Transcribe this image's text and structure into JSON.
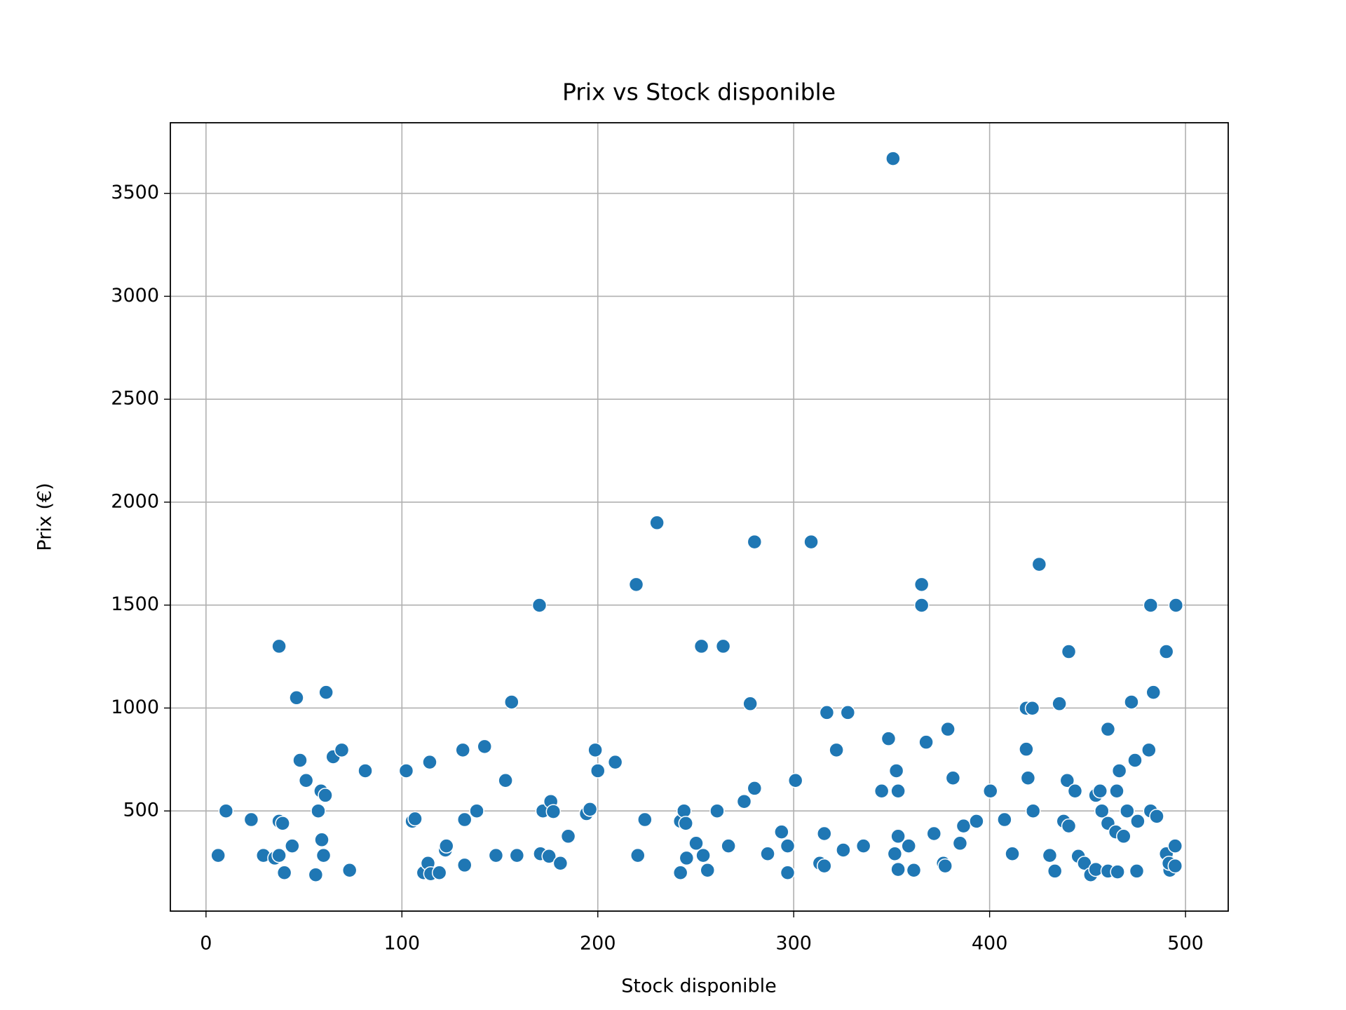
{
  "chart_data": {
    "type": "scatter",
    "title": "Prix vs Stock disponible",
    "x_label": "Stock disponible",
    "y_label": "Prix (€)",
    "color": "#1f77b4",
    "grid": true,
    "xlim": [
      -18.2,
      521.8
    ],
    "ylim": [
      13.5,
      3843
    ],
    "xticks": [
      0,
      100,
      200,
      300,
      400,
      500
    ],
    "yticks": [
      500,
      1000,
      1500,
      2000,
      2500,
      3000,
      3500
    ],
    "x": [
      6.2,
      10.2,
      23.1,
      29.3,
      35.1,
      37.3,
      37.3,
      37.3,
      39.1,
      40,
      44,
      46.2,
      48,
      51.1,
      56,
      57.3,
      58.7,
      59.1,
      60,
      60.9,
      61.3,
      64.9,
      69.3,
      73.3,
      81.3,
      102.2,
      105.3,
      106.7,
      111.1,
      113.3,
      114.7,
      114.2,
      119.1,
      122.2,
      122.7,
      131.1,
      132,
      132,
      138.2,
      142.2,
      148,
      152.9,
      156,
      158.7,
      170.2,
      170.7,
      172,
      175.1,
      176,
      177.3,
      180.9,
      184.9,
      194.2,
      196,
      198.7,
      200,
      208.9,
      219.6,
      220.4,
      224,
      230.2,
      242.2,
      242.2,
      244,
      244.9,
      245.3,
      250.2,
      252.9,
      253.8,
      256,
      260.9,
      264,
      266.7,
      274.7,
      277.8,
      280,
      280,
      286.7,
      293.8,
      296.9,
      296.9,
      300.9,
      308.9,
      313.3,
      315.6,
      315.6,
      316.9,
      321.8,
      325.3,
      327.6,
      335.6,
      344.9,
      348.4,
      350.7,
      351.6,
      352.4,
      353.3,
      353.3,
      353.3,
      358.7,
      361.3,
      365.3,
      365.3,
      367.6,
      371.6,
      376.4,
      377.3,
      378.7,
      381.3,
      384.9,
      386.7,
      393.3,
      400.4,
      407.6,
      411.6,
      418.7,
      418.7,
      419.6,
      421.8,
      422.2,
      425.3,
      430.7,
      433.3,
      435.6,
      437.8,
      439.6,
      440.4,
      440.4,
      443.6,
      445.3,
      448.4,
      451.6,
      454.2,
      454.2,
      456.4,
      457.3,
      460.4,
      460.4,
      460.4,
      464.4,
      464.9,
      466.2,
      465.3,
      468.4,
      470.2,
      472.4,
      474.2,
      475.1,
      475.6,
      481.3,
      482.2,
      482.2,
      483.6,
      485.3,
      490.2,
      490.2,
      492,
      491.6,
      494.7,
      494.7,
      495.1
    ],
    "values": [
      284,
      500,
      458,
      284,
      271,
      1300,
      450,
      284,
      440,
      200,
      330,
      1050,
      746,
      648,
      190,
      500,
      597,
      360,
      284,
      576,
      1076,
      763,
      796,
      212,
      695,
      695,
      450,
      462,
      200,
      246,
      195,
      737,
      200,
      310,
      330,
      796,
      458,
      237,
      500,
      813,
      284,
      648,
      1029,
      284,
      1499,
      292,
      500,
      280,
      546,
      497,
      246,
      377,
      487,
      508,
      796,
      695,
      737,
      1600,
      284,
      458,
      1900,
      450,
      200,
      500,
      440,
      271,
      343,
      1300,
      284,
      212,
      500,
      1300,
      330,
      546,
      1021,
      1807,
      610,
      292,
      398,
      330,
      200,
      648,
      1807,
      246,
      390,
      233,
      978,
      796,
      310,
      978,
      330,
      597,
      851,
      3669,
      292,
      695,
      597,
      377,
      216,
      330,
      212,
      1600,
      1499,
      834,
      390,
      246,
      233,
      897,
      660,
      343,
      427,
      450,
      597,
      458,
      292,
      999,
      800,
      660,
      999,
      500,
      1698,
      284,
      208,
      1021,
      450,
      648,
      427,
      1274,
      597,
      280,
      246,
      190,
      576,
      216,
      597,
      500,
      440,
      208,
      897,
      398,
      597,
      695,
      204,
      377,
      500,
      1029,
      746,
      208,
      450,
      796,
      1499,
      500,
      1076,
      474,
      1274,
      292,
      212,
      246,
      330,
      233,
      1499
    ]
  }
}
